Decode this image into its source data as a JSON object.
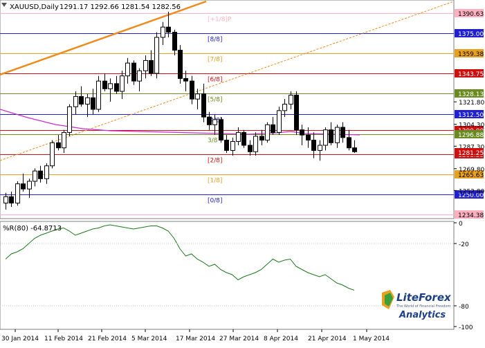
{
  "header": {
    "symbol": "XAUUSD,Daily",
    "ohlc": "1291.17 1292.66 1281.54 1282.56"
  },
  "indicator": {
    "label": "%R(80) -64.8713"
  },
  "colors": {
    "bg": "#ffffff",
    "bull": "#ffffff",
    "bear": "#000000",
    "wick": "#000000",
    "trend": "#f08a1c",
    "ma": "#cc2ccc",
    "wpr": "#1b7a1b",
    "grid": "#c0c0c0"
  },
  "murrey_levels": [
    {
      "label": "[+1/8]P",
      "price": "1390.63",
      "value": 1390.63,
      "color": "#ffb0c0"
    },
    {
      "label": "[8/8]",
      "price": "1375.00",
      "value": 1375.0,
      "color": "#2020d0"
    },
    {
      "label": "[7/8]",
      "price": "1359.38",
      "value": 1359.38,
      "color": "#e8a020"
    },
    {
      "label": "[6/8]",
      "price": "1343.75",
      "value": 1343.75,
      "color": "#cc1010"
    },
    {
      "label": "[5/8]",
      "price": "1328.13",
      "value": 1328.13,
      "color": "#6a8a20"
    },
    {
      "label": "[4/8]",
      "price": "1312.50",
      "value": 1312.5,
      "color": "#2020d0"
    },
    {
      "label": "",
      "price": "1300.00",
      "value": 1300.0,
      "color": "#cc1010"
    },
    {
      "label": "3/8",
      "price": "1296.88",
      "value": 1296.88,
      "color": "#6a8a20"
    },
    {
      "label": "[2/8]",
      "price": "1281.25",
      "value": 1281.25,
      "color": "#cc1010"
    },
    {
      "label": "[1/8]",
      "price": "1265.63",
      "value": 1265.63,
      "color": "#e8a020"
    },
    {
      "label": "[0/8]",
      "price": "1250.00",
      "value": 1250.0,
      "color": "#2020d0"
    },
    {
      "label": "",
      "price": "1234.38",
      "value": 1234.38,
      "color": "#ffb0c0"
    }
  ],
  "chart_data": {
    "type": "candlestick",
    "x_labels": [
      "30 Jan 2014",
      "11 Feb 2014",
      "21 Feb 2014",
      "5 Mar 2014",
      "17 Mar 2014",
      "27 Mar 2014",
      "8 Apr 2014",
      "21 Apr 2014",
      "1 May 2014"
    ],
    "price_axis_ticks": [
      "1321.80",
      "1304.30",
      "1287.30",
      "1269.80",
      "1252.80"
    ],
    "wpr_axis_ticks": [
      "0",
      "-20",
      "-80",
      "-100"
    ],
    "wpr_range": [
      -100,
      0
    ],
    "price_range": [
      1232,
      1400
    ],
    "candles": [
      [
        1243,
        1251,
        1238,
        1248
      ],
      [
        1248,
        1252,
        1240,
        1243
      ],
      [
        1243,
        1260,
        1241,
        1258
      ],
      [
        1258,
        1266,
        1252,
        1254
      ],
      [
        1254,
        1262,
        1247,
        1260
      ],
      [
        1260,
        1270,
        1256,
        1268
      ],
      [
        1268,
        1272,
        1259,
        1262
      ],
      [
        1262,
        1274,
        1258,
        1272
      ],
      [
        1272,
        1292,
        1270,
        1290
      ],
      [
        1290,
        1296,
        1284,
        1286
      ],
      [
        1286,
        1300,
        1282,
        1298
      ],
      [
        1298,
        1320,
        1295,
        1318
      ],
      [
        1318,
        1330,
        1312,
        1326
      ],
      [
        1326,
        1334,
        1318,
        1320
      ],
      [
        1320,
        1328,
        1310,
        1325
      ],
      [
        1325,
        1332,
        1312,
        1316
      ],
      [
        1316,
        1342,
        1314,
        1338
      ],
      [
        1338,
        1344,
        1330,
        1332
      ],
      [
        1332,
        1340,
        1322,
        1336
      ],
      [
        1336,
        1342,
        1328,
        1330
      ],
      [
        1330,
        1346,
        1324,
        1342
      ],
      [
        1342,
        1356,
        1336,
        1352
      ],
      [
        1352,
        1354,
        1335,
        1338
      ],
      [
        1338,
        1348,
        1330,
        1346
      ],
      [
        1346,
        1358,
        1340,
        1354
      ],
      [
        1354,
        1362,
        1342,
        1344
      ],
      [
        1344,
        1376,
        1340,
        1372
      ],
      [
        1372,
        1384,
        1366,
        1380
      ],
      [
        1380,
        1392,
        1372,
        1376
      ],
      [
        1376,
        1378,
        1358,
        1362
      ],
      [
        1362,
        1366,
        1336,
        1340
      ],
      [
        1340,
        1346,
        1330,
        1338
      ],
      [
        1338,
        1342,
        1320,
        1324
      ],
      [
        1324,
        1332,
        1316,
        1328
      ],
      [
        1328,
        1336,
        1306,
        1310
      ],
      [
        1310,
        1314,
        1300,
        1304
      ],
      [
        1304,
        1312,
        1296,
        1308
      ],
      [
        1308,
        1310,
        1290,
        1292
      ],
      [
        1292,
        1296,
        1282,
        1284
      ],
      [
        1284,
        1294,
        1280,
        1291
      ],
      [
        1291,
        1302,
        1288,
        1298
      ],
      [
        1298,
        1300,
        1286,
        1288
      ],
      [
        1288,
        1292,
        1280,
        1283
      ],
      [
        1283,
        1298,
        1280,
        1295
      ],
      [
        1295,
        1300,
        1288,
        1292
      ],
      [
        1292,
        1306,
        1290,
        1304
      ],
      [
        1304,
        1310,
        1296,
        1298
      ],
      [
        1298,
        1318,
        1296,
        1315
      ],
      [
        1315,
        1324,
        1310,
        1320
      ],
      [
        1320,
        1330,
        1316,
        1327
      ],
      [
        1327,
        1330,
        1296,
        1300
      ],
      [
        1300,
        1304,
        1288,
        1296
      ],
      [
        1296,
        1302,
        1286,
        1292
      ],
      [
        1292,
        1298,
        1278,
        1284
      ],
      [
        1284,
        1292,
        1276,
        1288
      ],
      [
        1288,
        1302,
        1284,
        1300
      ],
      [
        1300,
        1306,
        1288,
        1290
      ],
      [
        1290,
        1304,
        1286,
        1302
      ],
      [
        1302,
        1306,
        1290,
        1294
      ],
      [
        1294,
        1300,
        1284,
        1286
      ],
      [
        1286,
        1292,
        1282,
        1283
      ]
    ],
    "wpr": [
      -35,
      -30,
      -28,
      -25,
      -20,
      -15,
      -12,
      -10,
      -8,
      -6,
      -5,
      -8,
      -12,
      -10,
      -8,
      -6,
      -5,
      -3,
      -2,
      -3,
      -4,
      -5,
      -6,
      -5,
      -4,
      -3,
      -3,
      -5,
      -8,
      -15,
      -25,
      -32,
      -30,
      -35,
      -38,
      -42,
      -40,
      -45,
      -48,
      -50,
      -55,
      -52,
      -50,
      -48,
      -45,
      -40,
      -35,
      -38,
      -36,
      -35,
      -42,
      -45,
      -48,
      -50,
      -52,
      -50,
      -54,
      -58,
      -60,
      -63,
      -65
    ]
  }
}
